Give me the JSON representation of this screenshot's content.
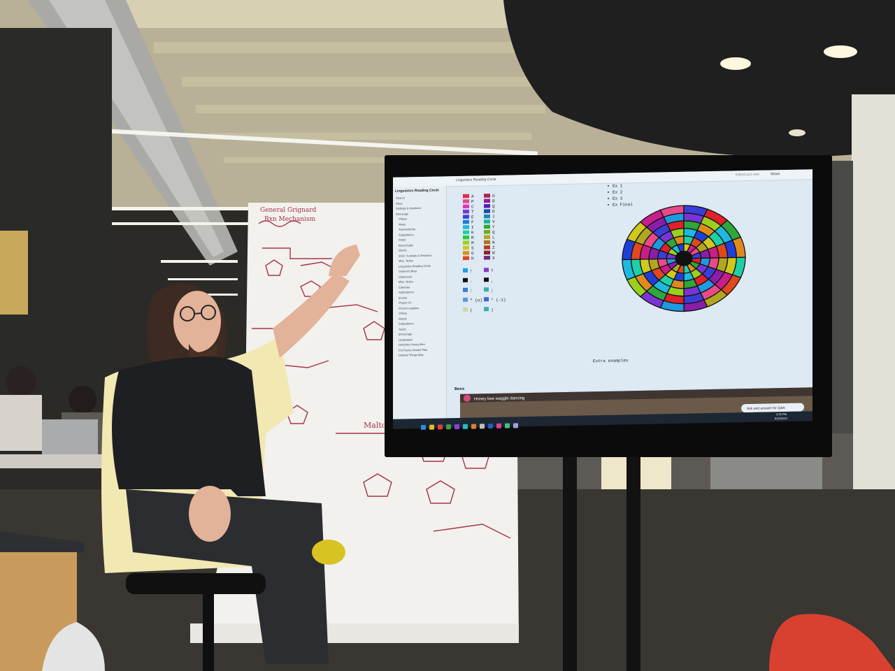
{
  "photo": {
    "subject": "",
    "accent_colors": {
      "floor": "#3a3632",
      "ceiling": "#c9c2a8",
      "whiteboard_ink": "#a8324a",
      "screen_bg": "#dde9f3",
      "shoe": "#d8412f"
    }
  },
  "screen": {
    "app_title": "Linguistics Reading Circle",
    "breadcrumb": "Linguistics Reading Circle",
    "top_right": [
      "Edited just now",
      "Share"
    ],
    "sidebar_items": [
      "Search",
      "Inbox",
      "Settings & members",
      "New page",
      "Videos",
      "Week",
      "Assessments",
      "Subpatterns",
      "Patch",
      "Bouncingtis",
      "Words",
      "2022: Tutorials & Sessions",
      "Misc. Notes",
      "Linguistics Reading Circle",
      "Student's Blog",
      "Classroom",
      "Misc. Notes",
      "Calendar",
      "Applications",
      "Events",
      "Project X3",
      "Kitchen supplies",
      "Videos",
      "Words",
      "Subpatterns",
      "Teach",
      "Encourage",
      "Languages",
      "Gebrüder Honey Bee",
      "ProTheme Kirsten Plan",
      "Deleted Things Map"
    ],
    "cipher_left_letters": [
      "A",
      "P",
      "C",
      "T",
      "E",
      "F",
      "I",
      "K",
      "R",
      "M",
      "S",
      "G",
      "H"
    ],
    "cipher_right_letters": [
      "O",
      "B",
      "Q",
      "D",
      "J",
      "V",
      "Y",
      "Q",
      "L",
      "N",
      "Z",
      "W",
      "X"
    ],
    "cipher_symbols_left": [
      "!",
      ".",
      ":",
      "\" (o)",
      "("
    ],
    "cipher_symbols_right": [
      "?",
      ",",
      ";",
      "* (-1)",
      ")"
    ],
    "examples": [
      "Ex 1",
      "Ex 2",
      "Ex 3",
      "Ex Final"
    ],
    "footer_note": "Extra examples",
    "section_heading": "Bees",
    "video_caption": "Honey bee waggle dancing",
    "chat_hint": "Ask and answer for Q&A",
    "clock": [
      "3:33 PM",
      "8/29/2024"
    ]
  },
  "whiteboard": {
    "heading": [
      "General Grignard",
      "Rxn Mechanism"
    ],
    "label_maltose": "Maltose"
  }
}
